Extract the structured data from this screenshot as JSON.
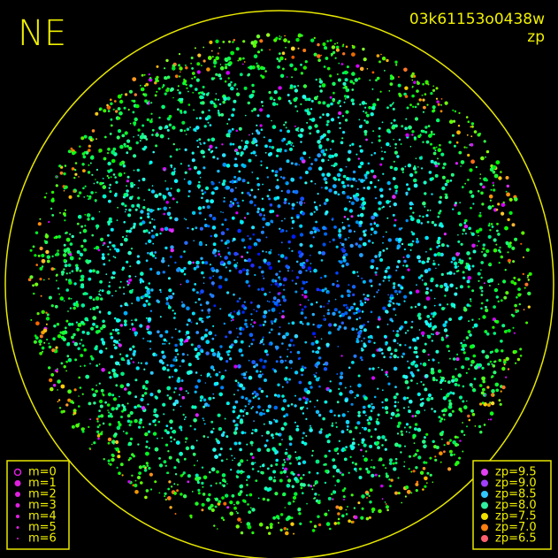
{
  "header": {
    "title": "NE",
    "frame_id": "03k61153o0438w",
    "quantity": "zp"
  },
  "legend_m": {
    "items": [
      "m=0",
      "m=1",
      "m=2",
      "m=3",
      "m=4",
      "m=5",
      "m=6"
    ],
    "color": "#e020e0"
  },
  "legend_zp": {
    "items": [
      {
        "label": "zp=9.5",
        "color": "#e040f0"
      },
      {
        "label": "zp=9.0",
        "color": "#a040ff"
      },
      {
        "label": "zp=8.5",
        "color": "#30c8ff"
      },
      {
        "label": "zp=8.0",
        "color": "#30f0a0"
      },
      {
        "label": "zp=7.5",
        "color": "#f0e000"
      },
      {
        "label": "zp=7.0",
        "color": "#ff8010"
      },
      {
        "label": "zp=6.5",
        "color": "#ff6070"
      }
    ]
  }
}
